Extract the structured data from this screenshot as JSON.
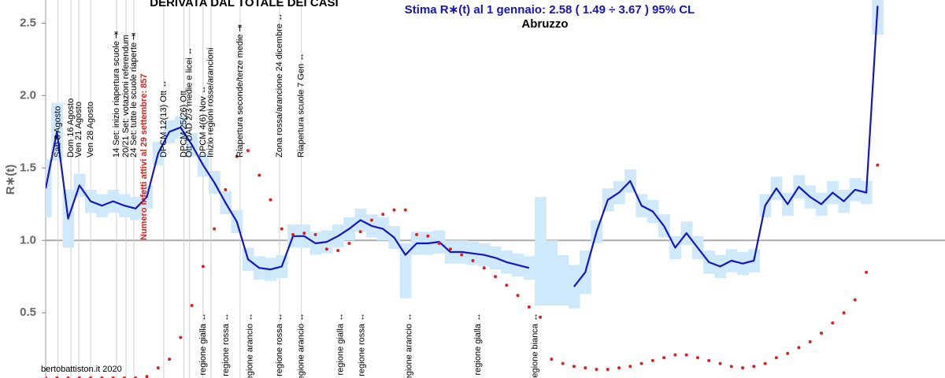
{
  "chart_data": {
    "type": "line",
    "title": "DERIVATA DAL TOTALE DEI CASI",
    "subtitle": "Stima R∗(t) al 1 gennaio: 2.58 ( 1.49 ÷ 3.67 ) 95% CL",
    "region": "Abruzzo",
    "y_label": "R∗(t)",
    "credit": "bertobattiston.it 2020",
    "red_label": "Numero infetti attivi al 29 settembre: 857",
    "xlim": [
      0,
      160
    ],
    "ylim": [
      0.05,
      2.66
    ],
    "yticks": [
      0.5,
      {
        "value": 1,
        "label": "1.0"
      },
      1.5,
      {
        "value": 2,
        "label": "2.0"
      },
      2.5
    ],
    "hline": 1,
    "x": [
      0,
      2,
      4,
      6,
      8,
      10,
      12,
      14,
      16,
      18,
      20,
      22,
      24,
      26,
      28,
      30,
      32,
      34,
      36,
      38,
      40,
      42,
      44,
      46,
      48,
      50,
      52,
      54,
      56,
      58,
      60,
      62,
      64,
      66,
      68,
      70,
      72,
      74,
      76,
      78,
      80,
      82,
      84,
      86,
      88,
      90,
      92,
      94,
      96,
      98,
      100,
      102,
      104,
      106,
      108,
      110,
      112,
      114,
      116,
      118,
      120,
      122,
      124,
      126,
      128,
      130,
      132,
      134,
      136,
      138,
      140,
      142,
      144,
      146,
      148
    ],
    "series": [
      {
        "color": "#1414c8",
        "values": [
          1.36,
          1.75,
          1.15,
          1.38,
          1.27,
          1.24,
          1.27,
          1.24,
          1.22,
          1.3,
          1.6,
          1.75,
          1.78,
          1.66,
          1.52,
          1.4,
          1.26,
          1.13,
          0.87,
          0.81,
          0.8,
          0.82,
          1.03,
          1.03,
          0.98,
          0.99,
          1.03,
          1.08,
          1.14,
          1.1,
          1.08,
          1.02,
          0.9,
          0.98,
          0.98,
          0.99,
          0.92,
          0.92,
          0.91,
          0.9,
          0.88,
          0.85,
          0.83,
          0.81,
          null,
          null,
          null,
          0.68,
          0.78,
          1.06,
          1.28,
          1.33,
          1.41,
          1.24,
          1.2,
          1.1,
          0.95,
          1.05,
          0.95,
          0.85,
          0.82,
          0.86,
          0.84,
          0.86,
          1.24,
          1.36,
          1.25,
          1.37,
          1.3,
          1.25,
          1.33,
          1.27,
          1.35,
          1.33,
          2.62
        ],
        "band_color": "#cfe9fc",
        "lower": [
          1.16,
          1.55,
          0.95,
          1.3,
          1.19,
          1.16,
          1.19,
          1.16,
          1.14,
          1.22,
          1.52,
          1.67,
          1.7,
          1.58,
          1.44,
          1.32,
          1.18,
          1.05,
          0.79,
          0.73,
          0.72,
          0.74,
          0.95,
          0.95,
          0.9,
          0.91,
          0.95,
          1.0,
          1.06,
          1.02,
          1.0,
          0.94,
          0.6,
          0.9,
          0.9,
          0.91,
          0.84,
          0.84,
          0.83,
          0.82,
          0.8,
          0.77,
          0.75,
          0.73,
          0.55,
          0.55,
          0.55,
          0.53,
          0.63,
          0.98,
          1.2,
          1.25,
          1.33,
          1.16,
          1.12,
          1.02,
          0.87,
          0.97,
          0.87,
          0.77,
          0.74,
          0.78,
          0.76,
          0.78,
          1.16,
          1.28,
          1.17,
          1.29,
          1.22,
          1.17,
          1.25,
          1.19,
          1.27,
          1.25,
          2.42
        ],
        "upper": [
          1.56,
          1.95,
          1.35,
          1.46,
          1.35,
          1.32,
          1.35,
          1.32,
          1.3,
          1.38,
          1.68,
          1.83,
          1.86,
          1.74,
          1.6,
          1.48,
          1.34,
          1.21,
          0.95,
          0.89,
          0.88,
          0.9,
          1.11,
          1.11,
          1.06,
          1.07,
          1.11,
          1.16,
          1.22,
          1.18,
          1.16,
          1.1,
          0.98,
          1.06,
          1.06,
          1.07,
          1.0,
          1.0,
          0.99,
          0.98,
          0.96,
          0.93,
          0.91,
          0.89,
          1.3,
          1.0,
          0.9,
          0.83,
          0.93,
          1.14,
          1.36,
          1.41,
          1.49,
          1.32,
          1.28,
          1.18,
          1.03,
          1.13,
          1.03,
          0.93,
          0.9,
          0.94,
          0.92,
          0.94,
          1.32,
          1.44,
          1.33,
          1.45,
          1.38,
          1.33,
          1.41,
          1.35,
          1.43,
          1.41,
          2.66
        ]
      },
      {
        "color": "#e01e1e",
        "style": "dots",
        "values": [
          0.05,
          0.05,
          0.05,
          0.05,
          0.05,
          0.05,
          0.05,
          0.05,
          0.05,
          0.06,
          0.12,
          0.18,
          0.33,
          0.55,
          0.82,
          1.08,
          1.35,
          1.58,
          1.62,
          1.45,
          1.28,
          1.08,
          1.04,
          1.05,
          1.04,
          0.94,
          0.93,
          0.98,
          1.06,
          1.14,
          1.18,
          1.21,
          1.21,
          1.04,
          1.03,
          0.98,
          0.94,
          0.9,
          0.86,
          0.81,
          0.75,
          0.69,
          0.62,
          0.54,
          0.47,
          0.18,
          0.15,
          0.13,
          0.12,
          0.11,
          0.11,
          0.12,
          0.13,
          0.15,
          0.17,
          0.19,
          0.21,
          0.21,
          0.19,
          0.17,
          0.15,
          0.13,
          0.12,
          0.13,
          0.15,
          0.19,
          0.22,
          0.26,
          0.3,
          0.36,
          0.43,
          0.5,
          0.59,
          0.78,
          1.52
        ]
      }
    ],
    "events": [
      {
        "x": 2.2,
        "label": "Sab 8 Agosto"
      },
      {
        "x": 4.5,
        "label": "Dom 16 Agosto"
      },
      {
        "x": 5.9,
        "label": "Ven 21 Agosto"
      },
      {
        "x": 8.0,
        "label": "Ven 28 Agosto"
      },
      {
        "x": 12.6,
        "label": "14 Set: inizio riapertura scuole ⇥"
      },
      {
        "x": 14.3,
        "label": "20/21 Set: votazioni referendum"
      },
      {
        "x": 15.7,
        "label": "24 Set: tutte le scuole riaperte ⇥"
      },
      {
        "x": 21.0,
        "label": "DPCM 12(13) Ott ↔"
      },
      {
        "x": 24.6,
        "label": "DPCM 25(26) Ott"
      },
      {
        "x": 25.6,
        "label": "Ott: DAD 2/3 medie e licei ↔"
      },
      {
        "x": 28.0,
        "label": "DPCM 4(6) Nov ↔"
      },
      {
        "x": 29.4,
        "label": "Inizio regioni rosse/arancioni"
      },
      {
        "x": 34.6,
        "label": "Riapertura seconde/terze medie ⇥"
      },
      {
        "x": 41.6,
        "label": "Zona rossa/arancione 24 dicembre ↔"
      },
      {
        "x": 45.5,
        "label": "Riapertura scuole 7 Gen ↔"
      }
    ],
    "regions": [
      {
        "x": 28.0,
        "label": "regione gialla ↔"
      },
      {
        "x": 32.1,
        "label": "regione rossa ↔"
      },
      {
        "x": 36.4,
        "label": "regione arancio ↔"
      },
      {
        "x": 41.6,
        "label": "regione rossa ↔"
      },
      {
        "x": 45.5,
        "label": "regione arancio ↔"
      },
      {
        "x": 52.5,
        "label": "regione gialla ↔"
      },
      {
        "x": 56.3,
        "label": "regione rossa ↔"
      },
      {
        "x": 64.7,
        "label": "regione arancio ↔"
      },
      {
        "x": 76.9,
        "label": "regione gialla ↔"
      },
      {
        "x": 87.1,
        "label": "regione bianca ↔"
      }
    ]
  }
}
